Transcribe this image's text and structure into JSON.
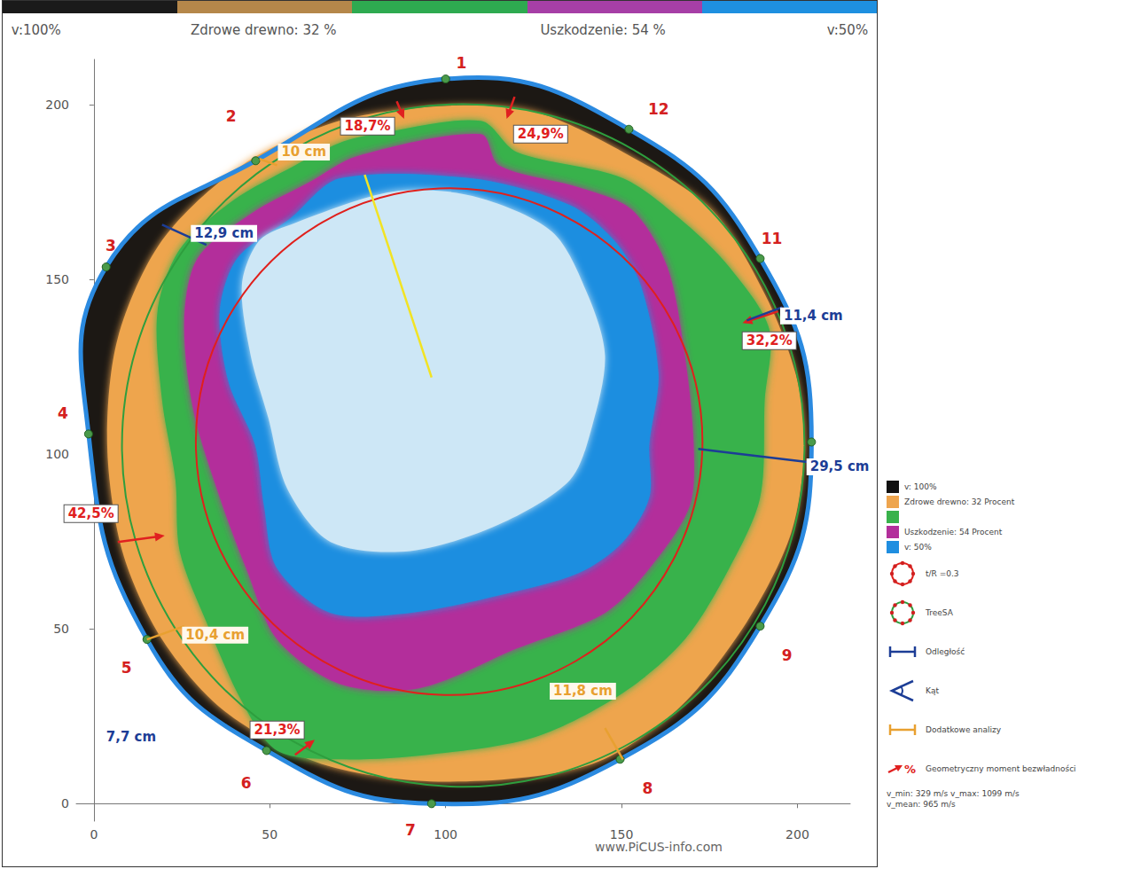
{
  "chart_data": {
    "type": "tomogram",
    "grid": false,
    "legend": "right",
    "xlim": [
      -5,
      215
    ],
    "xticks": [
      0,
      50,
      100,
      150,
      200
    ],
    "ylim": [
      -5,
      213
    ],
    "yticks": [
      0,
      50,
      100,
      150,
      200
    ],
    "scale_bar": {
      "colors": [
        "#1a1a1a",
        "#b5874a",
        "#2eaa50",
        "#a63fa6",
        "#1e90e0"
      ],
      "labels": [
        "v:100%",
        "Zdrowe drewno: 32 %",
        "Uszkodzenie: 54 %",
        "v:50%"
      ]
    },
    "section_color": "#1c1814",
    "rim_color": "#2b8ae0",
    "sensors": [
      {
        "label": "1",
        "x": 100,
        "y": 207.4,
        "label_x": 104.5,
        "label_y": 211.9
      },
      {
        "label": "2",
        "x": 46,
        "y": 184,
        "label_x": 39,
        "label_y": 196.7
      },
      {
        "label": "3",
        "x": 3.5,
        "y": 153.6,
        "label_x": 4.8,
        "label_y": 159.6
      },
      {
        "label": "4",
        "x": -1.5,
        "y": 105.8,
        "label_x": -8.8,
        "label_y": 111.7
      },
      {
        "label": "5",
        "x": 15.1,
        "y": 47,
        "label_x": 9.3,
        "label_y": 38.8
      },
      {
        "label": "6",
        "x": 49.1,
        "y": 15.2,
        "label_x": 43.3,
        "label_y": 5.8
      },
      {
        "label": "7",
        "x": 96,
        "y": 0,
        "label_x": 90,
        "label_y": -7.6
      },
      {
        "label": "8",
        "x": 149.6,
        "y": 12.7,
        "label_x": 157.4,
        "label_y": 4.3
      },
      {
        "label": "9",
        "x": 189.4,
        "y": 50.8,
        "label_x": 197,
        "label_y": 42.4
      },
      {
        "label": null,
        "x": 204,
        "y": 103.5
      },
      {
        "label": "11",
        "x": 189.4,
        "y": 156,
        "label_x": 192.7,
        "label_y": 161.7
      },
      {
        "label": "12",
        "x": 152.1,
        "y": 193,
        "label_x": 160.5,
        "label_y": 198.7
      }
    ],
    "zones": [
      {
        "color": "#eea54e",
        "points": [
          [
            100,
            199.7
          ],
          [
            125.2,
            198
          ],
          [
            150.4,
            186.5
          ],
          [
            175.6,
            170
          ],
          [
            190.7,
            145.9
          ],
          [
            199.5,
            123
          ],
          [
            202,
            102.8
          ],
          [
            198.2,
            77.4
          ],
          [
            185.6,
            52
          ],
          [
            165.5,
            26.6
          ],
          [
            140.3,
            10.9
          ],
          [
            100,
            6.3
          ],
          [
            64.7,
            11.4
          ],
          [
            37,
            26.6
          ],
          [
            19.4,
            47
          ],
          [
            8.1,
            72.3
          ],
          [
            3.8,
            102.8
          ],
          [
            6.8,
            133.2
          ],
          [
            19.4,
            161.2
          ],
          [
            42.1,
            182.7
          ],
          [
            69.8,
            195.4
          ]
        ]
      },
      {
        "color": "#39b24b",
        "points": [
          [
            79.8,
            191.6
          ],
          [
            110,
            195.4
          ],
          [
            120.2,
            186.5
          ],
          [
            150.4,
            179
          ],
          [
            168,
            166.2
          ],
          [
            180.6,
            153.6
          ],
          [
            192,
            135.8
          ],
          [
            190.7,
            115.5
          ],
          [
            189.4,
            87.6
          ],
          [
            180.6,
            67.3
          ],
          [
            168,
            47
          ],
          [
            150.4,
            31.7
          ],
          [
            125.2,
            19
          ],
          [
            95,
            14
          ],
          [
            69.8,
            12.7
          ],
          [
            52.1,
            15.2
          ],
          [
            42.1,
            29.2
          ],
          [
            32,
            52
          ],
          [
            24.4,
            72.3
          ],
          [
            23.2,
            92.6
          ],
          [
            19.4,
            115.5
          ],
          [
            18.1,
            140.9
          ],
          [
            24.4,
            158.6
          ],
          [
            39.5,
            172.6
          ],
          [
            57.2,
            182.7
          ],
          [
            69.8,
            189.1
          ]
        ]
      },
      {
        "color": "#b32f9b",
        "points": [
          [
            74.8,
            185.3
          ],
          [
            110,
            191.6
          ],
          [
            115.1,
            182.7
          ],
          [
            137.8,
            176.4
          ],
          [
            152.9,
            170
          ],
          [
            163,
            153.6
          ],
          [
            168,
            128.2
          ],
          [
            170.5,
            102.8
          ],
          [
            169.3,
            85
          ],
          [
            157.9,
            67.3
          ],
          [
            145.3,
            54.6
          ],
          [
            120.2,
            44.4
          ],
          [
            92.4,
            33
          ],
          [
            69.8,
            34.3
          ],
          [
            52.1,
            47
          ],
          [
            43.3,
            67.3
          ],
          [
            35.8,
            87.6
          ],
          [
            28.2,
            113
          ],
          [
            25.7,
            138.3
          ],
          [
            29.5,
            156.1
          ],
          [
            44.6,
            168.8
          ],
          [
            61,
            177.7
          ]
        ]
      },
      {
        "color": "#1f8ee0",
        "points": [
          [
            69.8,
            178.9
          ],
          [
            107.6,
            178.9
          ],
          [
            135.3,
            171.3
          ],
          [
            147.9,
            161.2
          ],
          [
            155.4,
            148.5
          ],
          [
            160.5,
            123.1
          ],
          [
            157.9,
            102.8
          ],
          [
            157.9,
            87.6
          ],
          [
            150.4,
            74.9
          ],
          [
            137.8,
            66
          ],
          [
            115.1,
            59.6
          ],
          [
            89.9,
            54.6
          ],
          [
            67.3,
            54.6
          ],
          [
            52.1,
            67.3
          ],
          [
            48.4,
            85
          ],
          [
            45.8,
            102.8
          ],
          [
            38.3,
            120.6
          ],
          [
            35.8,
            140.9
          ],
          [
            40.8,
            156.1
          ],
          [
            55.9,
            167.5
          ]
        ]
      },
      {
        "color": "#cde7f6",
        "points": [
          [
            57.2,
            166.2
          ],
          [
            84.9,
            175.1
          ],
          [
            107.6,
            173.9
          ],
          [
            130.2,
            163.7
          ],
          [
            140.3,
            145.9
          ],
          [
            145.3,
            128.2
          ],
          [
            141.6,
            107.9
          ],
          [
            135.3,
            92.6
          ],
          [
            115.1,
            79.9
          ],
          [
            89.9,
            72.3
          ],
          [
            67.3,
            74.9
          ],
          [
            55,
            90.1
          ],
          [
            49.6,
            110.4
          ],
          [
            44.6,
            128.2
          ],
          [
            42.1,
            148.5
          ],
          [
            47.1,
            161.2
          ]
        ]
      }
    ],
    "circles": [
      {
        "label": "t/R =0.3",
        "color": "#e0201c",
        "center": [
          101,
          103.6
        ],
        "radius": 72
      },
      {
        "label": "TreeSA",
        "color": "#2e9e3e",
        "center": [
          105,
          102.5
        ],
        "radius": 97
      }
    ],
    "lines": [
      {
        "color": "#f2e324",
        "points": [
          [
            77,
            180
          ],
          [
            96,
            122
          ]
        ]
      }
    ],
    "tools": [
      {
        "kind": "distance",
        "label": "Odległość",
        "color": "#1c3d96"
      },
      {
        "kind": "angle",
        "label": "Kąt",
        "color": "#1c3d96"
      },
      {
        "kind": "analysis",
        "label": "Dodatkowe analizy",
        "color": "#e8a030"
      },
      {
        "kind": "moment",
        "label": "Geometryczny moment bezwładności",
        "icon_text": "%",
        "color": "#e02020"
      }
    ],
    "annotations": [
      {
        "kind": "moment",
        "label": "18,7%",
        "x": 77.8,
        "y": 193.9,
        "line": [
          [
            86.1,
            201
          ],
          [
            87.9,
            196.7
          ]
        ]
      },
      {
        "kind": "moment",
        "label": "24,9%",
        "x": 127,
        "y": 191.6,
        "line": [
          [
            119.6,
            202.3
          ],
          [
            117.6,
            196.7
          ]
        ]
      },
      {
        "kind": "moment",
        "label": "32,2%",
        "x": 192,
        "y": 132.5,
        "line": [
          [
            194.5,
            140.9
          ],
          [
            185.1,
            137.8
          ]
        ]
      },
      {
        "kind": "moment",
        "label": "42,5%",
        "x": -0.8,
        "y": 83,
        "line": [
          [
            6.8,
            74.9
          ],
          [
            19.4,
            76.6
          ]
        ]
      },
      {
        "kind": "moment",
        "label": "21,3%",
        "x": 52.1,
        "y": 21.1,
        "line": [
          [
            57.2,
            14
          ],
          [
            62.2,
            17.8
          ]
        ]
      },
      {
        "kind": "distance",
        "label": "12,9 cm",
        "x": 37,
        "y": 163.2,
        "line": [
          [
            19.4,
            165.7
          ],
          [
            32,
            159.9
          ]
        ]
      },
      {
        "kind": "distance",
        "label": "11,4 cm",
        "x": 204.5,
        "y": 139.6,
        "line": [
          [
            185.6,
            138.3
          ],
          [
            195.7,
            142.1
          ]
        ]
      },
      {
        "kind": "distance",
        "label": "29,5 cm",
        "x": 212,
        "y": 96.4,
        "line": [
          [
            171.8,
            101.5
          ],
          [
            203.3,
            97.7
          ]
        ]
      },
      {
        "kind": "distance",
        "label": "7,7 cm",
        "x": 10.6,
        "y": 19
      },
      {
        "kind": "analysis",
        "label": "10 cm",
        "x": 59.7,
        "y": 186.5,
        "line": [
          [
            47.1,
            184.5
          ],
          [
            52.1,
            182.7
          ]
        ]
      },
      {
        "kind": "analysis",
        "label": "10,4 cm",
        "x": 34.5,
        "y": 48.2,
        "line": [
          [
            15.1,
            47
          ],
          [
            25.7,
            50.8
          ]
        ]
      },
      {
        "kind": "analysis",
        "label": "11,8 cm",
        "x": 139,
        "y": 32.2,
        "line": [
          [
            145.3,
            21.6
          ],
          [
            150.4,
            12.7
          ]
        ]
      }
    ],
    "legend_items": [
      {
        "label": "v: 100%",
        "color": "#111111"
      },
      {
        "label": "Zdrowe drewno: 32 Procent",
        "color": "#eea54e"
      },
      {
        "color": "#39b24b"
      },
      {
        "label": "Uszkodzenie: 54 Procent",
        "color": "#b32f9b"
      },
      {
        "label": "v: 50%",
        "color": "#1f8ee0"
      }
    ],
    "stats": [
      "v_min: 329 m/s v_max: 1099 m/s",
      "v_mean: 965 m/s"
    ],
    "footer": "www.PiCUS-info.com"
  }
}
